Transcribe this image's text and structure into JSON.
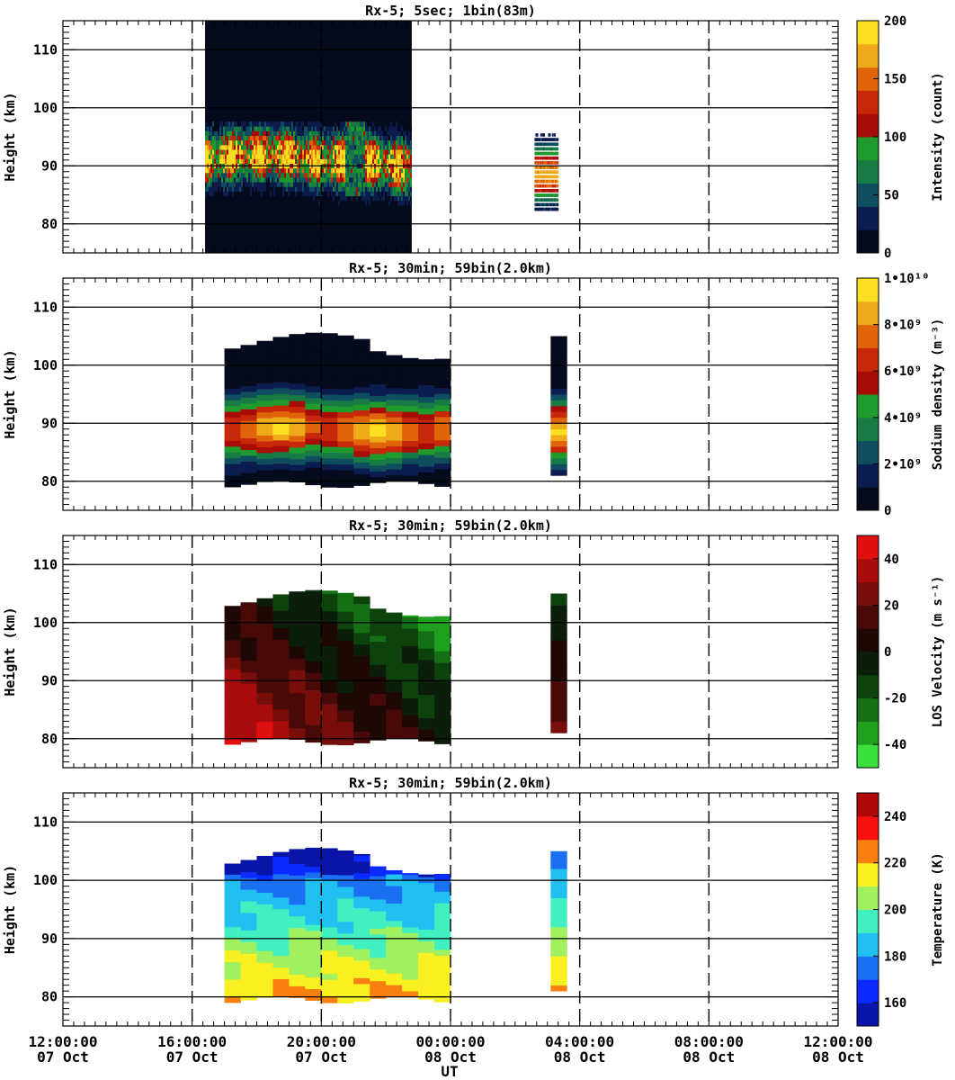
{
  "figure": {
    "x_axis_label": "UT",
    "x_ticks": [
      {
        "time": "12:00:00",
        "date": "07 Oct",
        "hours": 0
      },
      {
        "time": "16:00:00",
        "date": "07 Oct",
        "hours": 4
      },
      {
        "time": "20:00:00",
        "date": "07 Oct",
        "hours": 8
      },
      {
        "time": "00:00:00",
        "date": "08 Oct",
        "hours": 12
      },
      {
        "time": "04:00:00",
        "date": "08 Oct",
        "hours": 16
      },
      {
        "time": "08:00:00",
        "date": "08 Oct",
        "hours": 20
      },
      {
        "time": "12:00:00",
        "date": "08 Oct",
        "hours": 24
      }
    ],
    "x_range_hours": [
      0,
      24
    ]
  },
  "chart_data": [
    {
      "type": "heatmap",
      "title": "Rx-5;  5sec; 1bin(83m)",
      "ylabel": "Height (km)",
      "ylim": [
        75,
        115
      ],
      "yticks": [
        80,
        90,
        100,
        110
      ],
      "colorbar": {
        "label": "Intensity (count)",
        "range": [
          0,
          200
        ],
        "ticks": [
          {
            "value": 0,
            "label": "0"
          },
          {
            "value": 50,
            "label": "50"
          },
          {
            "value": 100,
            "label": "100"
          },
          {
            "value": 150,
            "label": "150"
          },
          {
            "value": 200,
            "label": "200"
          }
        ],
        "colors": [
          "#050a1c",
          "#0b1c4e",
          "#0e4e5e",
          "#187a44",
          "#1f9a2c",
          "#a80c08",
          "#c8280a",
          "#e0640a",
          "#eeaa18",
          "#fae020"
        ]
      },
      "data_coverage_hours": [
        [
          4.4,
          10.8
        ]
      ],
      "gaps_hours": [
        [
          0.0,
          4.4
        ],
        [
          10.8,
          15.3
        ]
      ],
      "layer": {
        "peak_height_km": 91,
        "top_km": 97,
        "bottom_km": 84,
        "peak_count": 200
      }
    },
    {
      "type": "heatmap",
      "title": "Rx-5; 30min; 59bin(2.0km)",
      "ylabel": "Height (km)",
      "ylim": [
        75,
        115
      ],
      "yticks": [
        80,
        90,
        100,
        110
      ],
      "colorbar": {
        "label": "Sodium density (m⁻³)",
        "range": [
          0,
          10000000000
        ],
        "ticks": [
          {
            "value": 0,
            "label": "0"
          },
          {
            "value": 2000000000,
            "label": "2•10⁹"
          },
          {
            "value": 4000000000,
            "label": "4•10⁹"
          },
          {
            "value": 6000000000,
            "label": "6•10⁹"
          },
          {
            "value": 8000000000,
            "label": "8•10⁹"
          },
          {
            "value": 10000000000,
            "label": "1•10¹⁰"
          }
        ],
        "colors": [
          "#050a1c",
          "#0b1c4e",
          "#0e4e5e",
          "#187a44",
          "#1f9a2c",
          "#a80c08",
          "#c8280a",
          "#e0640a",
          "#eeaa18",
          "#fae020"
        ]
      },
      "data_blocks_hours": [
        [
          5.0,
          12.0
        ],
        [
          15.1,
          15.6
        ]
      ],
      "layer": {
        "peak_height_km": 89,
        "peak_density": 8000000000
      }
    },
    {
      "type": "heatmap",
      "title": "Rx-5; 30min; 59bin(2.0km)",
      "ylabel": "Height (km)",
      "ylim": [
        75,
        115
      ],
      "yticks": [
        80,
        90,
        100,
        110
      ],
      "colorbar": {
        "label": "LOS Velocity (m s⁻¹)",
        "range": [
          -50,
          50
        ],
        "ticks": [
          {
            "value": -40,
            "label": "-40"
          },
          {
            "value": -20,
            "label": "-20"
          },
          {
            "value": 0,
            "label": "0"
          },
          {
            "value": 20,
            "label": "20"
          },
          {
            "value": 40,
            "label": "40"
          }
        ],
        "colors": [
          "#3ce03c",
          "#1fa01f",
          "#157015",
          "#0d420d",
          "#0a1e0a",
          "#1e0806",
          "#480a08",
          "#780e0a",
          "#a80c0c",
          "#e01010"
        ]
      },
      "data_blocks_hours": [
        [
          5.0,
          12.0
        ],
        [
          15.1,
          15.6
        ]
      ]
    },
    {
      "type": "heatmap",
      "title": "Rx-5; 30min; 59bin(2.0km)",
      "ylabel": "Height (km)",
      "ylim": [
        75,
        115
      ],
      "yticks": [
        80,
        90,
        100,
        110
      ],
      "colorbar": {
        "label": "Temperature (K)",
        "range": [
          150,
          250
        ],
        "ticks": [
          {
            "value": 160,
            "label": "160"
          },
          {
            "value": 180,
            "label": "180"
          },
          {
            "value": 200,
            "label": "200"
          },
          {
            "value": 220,
            "label": "220"
          },
          {
            "value": 240,
            "label": "240"
          }
        ],
        "colors": [
          "#0a14a8",
          "#0a2aff",
          "#1a70f0",
          "#20c0f0",
          "#40f0c0",
          "#a0f060",
          "#f8f020",
          "#f88010",
          "#f81010",
          "#b00808"
        ]
      },
      "data_blocks_hours": [
        [
          5.0,
          12.0
        ],
        [
          15.1,
          15.6
        ]
      ]
    }
  ]
}
